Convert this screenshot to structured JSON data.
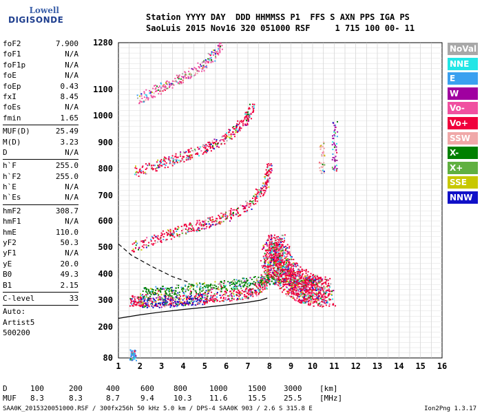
{
  "logo": {
    "line1": "Lowell",
    "line2": "DIGISONDE"
  },
  "header": {
    "line1": "Station YYYY DAY  DDD HHMMSS P1  FFS S AXN PPS IGA PS",
    "line2": "SaoLuis 2015 Nov16 320 051000 RSF     1 715 100 00- 11"
  },
  "params": {
    "group1": [
      {
        "name": "foF2",
        "value": "7.900"
      },
      {
        "name": "foF1",
        "value": "N/A"
      },
      {
        "name": "foF1p",
        "value": "N/A"
      },
      {
        "name": "foE",
        "value": "N/A"
      },
      {
        "name": "foEp",
        "value": "0.43"
      },
      {
        "name": "fxI",
        "value": "8.45"
      },
      {
        "name": "foEs",
        "value": "N/A"
      },
      {
        "name": "fmin",
        "value": "1.65"
      }
    ],
    "group2": [
      {
        "name": "MUF(D)",
        "value": "25.49"
      },
      {
        "name": "M(D)",
        "value": "3.23"
      },
      {
        "name": "D",
        "value": "N/A"
      }
    ],
    "group3": [
      {
        "name": "h`F",
        "value": "255.0"
      },
      {
        "name": "h`F2",
        "value": "255.0"
      },
      {
        "name": "h`E",
        "value": "N/A"
      },
      {
        "name": "h`Es",
        "value": "N/A"
      }
    ],
    "group4": [
      {
        "name": "hmF2",
        "value": "308.7"
      },
      {
        "name": "hmF1",
        "value": "N/A"
      },
      {
        "name": "hmE",
        "value": "110.0"
      },
      {
        "name": "yF2",
        "value": "50.3"
      },
      {
        "name": "yF1",
        "value": "N/A"
      },
      {
        "name": "yE",
        "value": "20.0"
      },
      {
        "name": "B0",
        "value": "49.3"
      },
      {
        "name": "B1",
        "value": "2.15"
      }
    ],
    "clevel": {
      "name": "C-level",
      "value": "33"
    },
    "auto": [
      "Auto:",
      "Artist5",
      "500200"
    ]
  },
  "legend": [
    {
      "label": "NoVal",
      "color": "#a8a8a8"
    },
    {
      "label": "NNE",
      "color": "#22e6e6"
    },
    {
      "label": "E",
      "color": "#3aa0f0"
    },
    {
      "label": "W",
      "color": "#a000a0"
    },
    {
      "label": "Vo-",
      "color": "#f050a0"
    },
    {
      "label": "Vo+",
      "color": "#f0003c"
    },
    {
      "label": "SSW",
      "color": "#f0a8a8"
    },
    {
      "label": "X-",
      "color": "#008000"
    },
    {
      "label": "X+",
      "color": "#60b040"
    },
    {
      "label": "SSE",
      "color": "#c8c800"
    },
    {
      "label": "NNW",
      "color": "#1010c8"
    }
  ],
  "chart_data": {
    "type": "scatter",
    "xlim": [
      1,
      16
    ],
    "ylim": [
      80,
      1280
    ],
    "x_ticks": [
      1,
      2,
      3,
      4,
      5,
      6,
      7,
      8,
      9,
      10,
      11,
      12,
      13,
      14,
      15,
      16
    ],
    "y_ticks": [
      80,
      200,
      300,
      400,
      500,
      600,
      700,
      800,
      900,
      1000,
      1100,
      1280
    ],
    "grid": true,
    "legend_position": "right",
    "traces": [
      {
        "name": "O-trace F2",
        "points": [
          [
            1.6,
            300
          ],
          [
            2,
            298
          ],
          [
            3,
            300
          ],
          [
            4,
            303
          ],
          [
            5,
            310
          ],
          [
            6,
            318
          ],
          [
            6.8,
            325
          ],
          [
            7.4,
            340
          ],
          [
            7.8,
            370
          ],
          [
            8.0,
            420
          ]
        ],
        "color": "#f0003c"
      },
      {
        "name": "O-trace 2nd hop",
        "points": [
          [
            1.6,
            500
          ],
          [
            3,
            540
          ],
          [
            4,
            570
          ],
          [
            5,
            590
          ],
          [
            6,
            620
          ],
          [
            7,
            660
          ],
          [
            7.8,
            740
          ],
          [
            8.0,
            820
          ]
        ],
        "color": "#f0003c"
      },
      {
        "name": "O-trace 3rd hop",
        "points": [
          [
            1.7,
            790
          ],
          [
            3,
            820
          ],
          [
            4,
            850
          ],
          [
            5,
            880
          ],
          [
            6,
            920
          ],
          [
            6.8,
            980
          ],
          [
            7.2,
            1030
          ]
        ],
        "color": "#f0003c"
      },
      {
        "name": "O-trace 4th hop",
        "points": [
          [
            1.8,
            1060
          ],
          [
            3,
            1110
          ],
          [
            4,
            1150
          ],
          [
            5,
            1200
          ],
          [
            5.8,
            1270
          ]
        ],
        "color": "#f050a0"
      },
      {
        "name": "X-trace",
        "points": [
          [
            2,
            330
          ],
          [
            3,
            336
          ],
          [
            4,
            342
          ],
          [
            5,
            350
          ],
          [
            6,
            358
          ],
          [
            7,
            370
          ],
          [
            8,
            380
          ],
          [
            9,
            390
          ]
        ],
        "color": "#008000"
      },
      {
        "name": "Spread F",
        "points": [
          [
            8.0,
            450
          ],
          [
            8.3,
            500
          ],
          [
            8.6,
            420
          ],
          [
            9,
            380
          ],
          [
            9.5,
            350
          ],
          [
            10,
            340
          ],
          [
            10.6,
            330
          ]
        ],
        "color": "#f0003c"
      },
      {
        "name": "Oblique W",
        "points": [
          [
            2,
            290
          ],
          [
            3,
            295
          ],
          [
            4,
            300
          ],
          [
            5,
            305
          ]
        ],
        "color": "#1010c8"
      },
      {
        "name": "Vertical streak",
        "points": [
          [
            11,
            980
          ],
          [
            11,
            940
          ],
          [
            11,
            900
          ],
          [
            11,
            860
          ],
          [
            11,
            820
          ],
          [
            11,
            790
          ]
        ],
        "color": "#a000a0"
      },
      {
        "name": "Vertical streak 2",
        "points": [
          [
            10.4,
            910
          ],
          [
            10.4,
            880
          ],
          [
            10.4,
            850
          ],
          [
            10.4,
            810
          ],
          [
            10.4,
            780
          ]
        ],
        "color": "#f0a8a8"
      },
      {
        "name": "Low echo",
        "points": [
          [
            1.6,
            95
          ],
          [
            1.7,
            90
          ]
        ],
        "color": "#3aa0f0"
      }
    ],
    "profile": {
      "points": [
        [
          1,
          232
        ],
        [
          2,
          245
        ],
        [
          3,
          256
        ],
        [
          4,
          265
        ],
        [
          5,
          273
        ],
        [
          6,
          282
        ],
        [
          7,
          292
        ],
        [
          7.6,
          300
        ],
        [
          7.9,
          308
        ]
      ],
      "color": "#000"
    },
    "profile_dashed": {
      "points": [
        [
          1,
          512
        ],
        [
          1.6,
          470
        ],
        [
          2.5,
          430
        ],
        [
          3.5,
          390
        ],
        [
          4.2,
          370
        ]
      ],
      "color": "#000"
    }
  },
  "bottom": {
    "d_label": "D",
    "d_values": [
      "100",
      "200",
      "400",
      "600",
      "800",
      "1000",
      "1500",
      "3000",
      "[km]"
    ],
    "muf_label": "MUF",
    "muf_values": [
      "8.3",
      "8.3",
      "8.7",
      "9.4",
      "10.3",
      "11.6",
      "15.5",
      "25.5",
      "[MHz]"
    ]
  },
  "footer": {
    "left": "SAA0K_2015320051000.RSF / 300fx256h 50 kHz 5.0 km / DPS-4 SAA0K 903 / 2.6 S 315.8 E",
    "right": "Ion2Png 1.3.17"
  }
}
